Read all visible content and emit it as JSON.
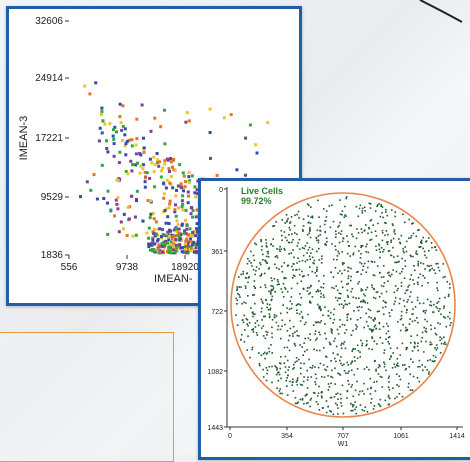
{
  "chart_data": [
    {
      "type": "scatter",
      "title": "",
      "xlabel": "IMEAN-",
      "ylabel": "IMEAN-3",
      "x_ticks": [
        "556",
        "9738",
        "18920"
      ],
      "y_ticks": [
        "32606",
        "24914",
        "17221",
        "9529",
        "1836"
      ],
      "xlim": [
        556,
        24000
      ],
      "ylim": [
        1836,
        32606
      ],
      "series_colors": [
        "#e8731e",
        "#2da83a",
        "#2f4fae",
        "#f0c22a",
        "#7d3f98"
      ]
    },
    {
      "type": "scatter",
      "annotation_label": "Live Cells",
      "annotation_value": "99.72%",
      "xlabel": "W1",
      "ylabel": "",
      "x_ticks": [
        "0",
        "354",
        "707",
        "1061",
        "1414"
      ],
      "y_ticks": [
        "0",
        "361",
        "722",
        "1082",
        "1443"
      ],
      "xlim": [
        0,
        1414
      ],
      "ylim": [
        0,
        1443
      ],
      "gate_color": "#e8874a",
      "point_color": "#1f5a2a",
      "label_color": "#2a7f2a"
    }
  ]
}
